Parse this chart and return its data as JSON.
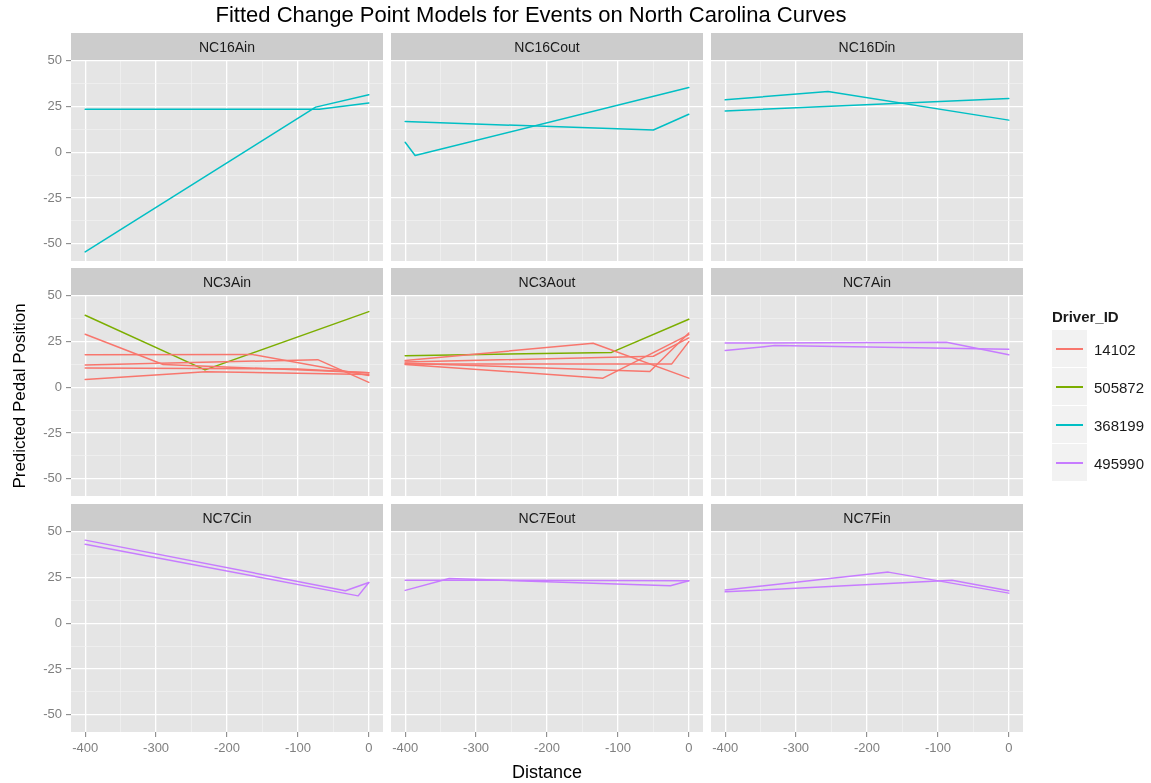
{
  "chart_data": [
    {
      "type": "line",
      "subtitle": "NC16Ain",
      "xlim": [
        -420,
        20
      ],
      "ylim": [
        -59.5,
        50.5
      ],
      "xticks": [
        -400,
        {
          "value": -350,
          "label": null
        },
        -300,
        {
          "value": -250,
          "label": null
        },
        -200,
        {
          "value": -150,
          "label": null
        },
        -100,
        {
          "value": -50,
          "label": null
        },
        0
      ],
      "yticks": [
        -50,
        {
          "value": -37.5,
          "label": null
        },
        -25,
        {
          "value": -12.5,
          "label": null
        },
        0,
        {
          "value": 12.5,
          "label": null
        },
        25,
        {
          "value": 37.5,
          "label": null
        },
        50
      ],
      "grid": true,
      "tick_labels": "y",
      "series": [
        {
          "name": "368199",
          "color": "#00bfc4",
          "x": [
            -400,
            -70,
            0
          ],
          "values": [
            23.5,
            23.5,
            27
          ]
        },
        {
          "color": "#00bfc4",
          "x": [
            -400,
            -75,
            0
          ],
          "values": [
            -54.5,
            24.7,
            31.5
          ]
        }
      ]
    },
    {
      "type": "line",
      "title": "Fitted Change Point Models for Events on North Carolina Curves",
      "subtitle": "NC16Cout",
      "xlim": [
        -420,
        20
      ],
      "ylim": [
        -59.5,
        50.5
      ],
      "xticks": [
        -400,
        {
          "value": -350,
          "label": null
        },
        -300,
        {
          "value": -250,
          "label": null
        },
        -200,
        {
          "value": -150,
          "label": null
        },
        -100,
        {
          "value": -50,
          "label": null
        },
        0
      ],
      "yticks": [
        -50,
        {
          "value": -37.5,
          "label": null
        },
        -25,
        {
          "value": -12.5,
          "label": null
        },
        0,
        {
          "value": 12.5,
          "label": null
        },
        25,
        {
          "value": 37.5,
          "label": null
        },
        50
      ],
      "grid": true,
      "tick_labels": false,
      "series": [
        {
          "color": "#00bfc4",
          "x": [
            -400,
            -386,
            0
          ],
          "values": [
            5.5,
            -1.8,
            35.5
          ]
        },
        {
          "color": "#00bfc4",
          "x": [
            -400,
            -50,
            0
          ],
          "values": [
            16.8,
            12.2,
            20.8
          ]
        }
      ]
    },
    {
      "type": "line",
      "subtitle": "NC16Din",
      "xlim": [
        -420,
        20
      ],
      "ylim": [
        -59.5,
        50.5
      ],
      "xticks": [
        -400,
        {
          "value": -350,
          "label": null
        },
        -300,
        {
          "value": -250,
          "label": null
        },
        -200,
        {
          "value": -150,
          "label": null
        },
        -100,
        {
          "value": -50,
          "label": null
        },
        0
      ],
      "yticks": [
        -50,
        {
          "value": -37.5,
          "label": null
        },
        -25,
        {
          "value": -12.5,
          "label": null
        },
        0,
        {
          "value": 12.5,
          "label": null
        },
        25,
        {
          "value": 37.5,
          "label": null
        },
        50
      ],
      "grid": true,
      "tick_labels": false,
      "series": [
        {
          "color": "#00bfc4",
          "x": [
            -400,
            -255,
            0
          ],
          "values": [
            28.7,
            33.3,
            17.6
          ]
        },
        {
          "color": "#00bfc4",
          "x": [
            -400,
            0
          ],
          "values": [
            22.6,
            29.4
          ]
        }
      ]
    },
    {
      "type": "line",
      "subtitle": "NC3Ain",
      "ylabel": "Predicted Pedal Position",
      "xlim": [
        -420,
        20
      ],
      "ylim": [
        -59.5,
        50.5
      ],
      "xticks": [
        -400,
        {
          "value": -350,
          "label": null
        },
        -300,
        {
          "value": -250,
          "label": null
        },
        -200,
        {
          "value": -150,
          "label": null
        },
        -100,
        {
          "value": -50,
          "label": null
        },
        0
      ],
      "yticks": [
        -50,
        {
          "value": -37.5,
          "label": null
        },
        -25,
        {
          "value": -12.5,
          "label": null
        },
        0,
        {
          "value": 12.5,
          "label": null
        },
        25,
        {
          "value": 37.5,
          "label": null
        },
        50
      ],
      "grid": true,
      "tick_labels": "y",
      "series": [
        {
          "name": "14102",
          "color": "#f8766d",
          "x": [
            -400,
            -290,
            0
          ],
          "values": [
            29,
            12.5,
            8
          ]
        },
        {
          "color": "#f8766d",
          "x": [
            -400,
            -165,
            0
          ],
          "values": [
            17.8,
            18,
            6.5
          ]
        },
        {
          "color": "#f8766d",
          "x": [
            -400,
            -72,
            0
          ],
          "values": [
            12.2,
            15.1,
            2.7
          ]
        },
        {
          "color": "#f8766d",
          "x": [
            -400,
            -100,
            0
          ],
          "values": [
            10.6,
            10,
            7.9
          ]
        },
        {
          "color": "#f8766d",
          "x": [
            -400,
            -230,
            0
          ],
          "values": [
            4.3,
            8.5,
            7
          ]
        },
        {
          "name": "505872",
          "color": "#7cae00",
          "x": [
            -400,
            -231,
            0
          ],
          "values": [
            39.4,
            9.5,
            41.4
          ]
        }
      ]
    },
    {
      "type": "line",
      "subtitle": "NC3Aout",
      "xlim": [
        -420,
        20
      ],
      "ylim": [
        -59.5,
        50.5
      ],
      "xticks": [
        -400,
        {
          "value": -350,
          "label": null
        },
        -300,
        {
          "value": -250,
          "label": null
        },
        -200,
        {
          "value": -150,
          "label": null
        },
        -100,
        {
          "value": -50,
          "label": null
        },
        0
      ],
      "yticks": [
        -50,
        {
          "value": -37.5,
          "label": null
        },
        -25,
        {
          "value": -12.5,
          "label": null
        },
        0,
        {
          "value": 12.5,
          "label": null
        },
        25,
        {
          "value": 37.5,
          "label": null
        },
        50
      ],
      "grid": true,
      "tick_labels": false,
      "series": [
        {
          "color": "#f8766d",
          "x": [
            -400,
            -135,
            0
          ],
          "values": [
            14.6,
            24.1,
            5
          ]
        },
        {
          "color": "#f8766d",
          "x": [
            -400,
            -121,
            0
          ],
          "values": [
            12.5,
            5,
            28.8
          ]
        },
        {
          "color": "#f8766d",
          "x": [
            -400,
            -55,
            0
          ],
          "values": [
            13.2,
            8.6,
            29.7
          ]
        },
        {
          "color": "#f8766d",
          "x": [
            -400,
            -24,
            0
          ],
          "values": [
            12.8,
            12.8,
            25
          ]
        },
        {
          "color": "#f8766d",
          "x": [
            -400,
            -50,
            0
          ],
          "values": [
            13.8,
            17,
            27
          ]
        },
        {
          "color": "#7cae00",
          "x": [
            -400,
            -109,
            0
          ],
          "values": [
            17.3,
            19.1,
            37.2
          ]
        }
      ]
    },
    {
      "type": "line",
      "subtitle": "NC7Ain",
      "legend": "right",
      "legend_title": "Driver_ID",
      "xlim": [
        -420,
        20
      ],
      "ylim": [
        -59.5,
        50.5
      ],
      "xticks": [
        -400,
        {
          "value": -350,
          "label": null
        },
        -300,
        {
          "value": -250,
          "label": null
        },
        -200,
        {
          "value": -150,
          "label": null
        },
        -100,
        {
          "value": -50,
          "label": null
        },
        0
      ],
      "yticks": [
        -50,
        {
          "value": -37.5,
          "label": null
        },
        -25,
        {
          "value": -12.5,
          "label": null
        },
        0,
        {
          "value": 12.5,
          "label": null
        },
        25,
        {
          "value": 37.5,
          "label": null
        },
        50
      ],
      "grid": true,
      "tick_labels": false,
      "series": [
        {
          "name": "495990",
          "color": "#c77cff",
          "x": [
            -400,
            -88,
            0
          ],
          "values": [
            24.2,
            24.7,
            17.8
          ]
        },
        {
          "color": "#c77cff",
          "x": [
            -400,
            -330,
            0
          ],
          "values": [
            20.1,
            22.8,
            20.8
          ]
        }
      ]
    },
    {
      "type": "line",
      "subtitle": "NC7Cin",
      "xlim": [
        -420,
        20
      ],
      "ylim": [
        -59.5,
        50.5
      ],
      "xticks": [
        -400,
        {
          "value": -350,
          "label": null
        },
        -300,
        {
          "value": -250,
          "label": null
        },
        -200,
        {
          "value": -150,
          "label": null
        },
        -100,
        {
          "value": -50,
          "label": null
        },
        0
      ],
      "yticks": [
        -50,
        {
          "value": -37.5,
          "label": null
        },
        -25,
        {
          "value": -12.5,
          "label": null
        },
        0,
        {
          "value": 12.5,
          "label": null
        },
        25,
        {
          "value": 37.5,
          "label": null
        },
        50
      ],
      "grid": true,
      "series": [
        {
          "color": "#c77cff",
          "x": [
            -400,
            -33,
            0
          ],
          "values": [
            45.5,
            17.8,
            22.3
          ]
        },
        {
          "color": "#c77cff",
          "x": [
            -400,
            -15,
            0
          ],
          "values": [
            43.2,
            15,
            22.3
          ]
        }
      ]
    },
    {
      "type": "line",
      "subtitle": "NC7Eout",
      "xlabel": "Distance",
      "xlim": [
        -420,
        20
      ],
      "ylim": [
        -59.5,
        50.5
      ],
      "xticks": [
        -400,
        {
          "value": -350,
          "label": null
        },
        -300,
        {
          "value": -250,
          "label": null
        },
        -200,
        {
          "value": -150,
          "label": null
        },
        -100,
        {
          "value": -50,
          "label": null
        },
        0
      ],
      "yticks": [
        -50,
        {
          "value": -37.5,
          "label": null
        },
        -25,
        {
          "value": -12.5,
          "label": null
        },
        0,
        {
          "value": 12.5,
          "label": null
        },
        25,
        {
          "value": 37.5,
          "label": null
        },
        50
      ],
      "grid": true,
      "tick_labels": "x",
      "series": [
        {
          "color": "#c77cff",
          "x": [
            -400,
            0
          ],
          "values": [
            23.6,
            23.3
          ]
        },
        {
          "color": "#c77cff",
          "x": [
            -400,
            -338,
            -26,
            0
          ],
          "values": [
            18,
            24.5,
            20.5,
            23.3
          ]
        }
      ]
    },
    {
      "type": "line",
      "subtitle": "NC7Fin",
      "xlim": [
        -420,
        20
      ],
      "ylim": [
        -59.5,
        50.5
      ],
      "xticks": [
        -400,
        {
          "value": -350,
          "label": null
        },
        -300,
        {
          "value": -250,
          "label": null
        },
        -200,
        {
          "value": -150,
          "label": null
        },
        -100,
        {
          "value": -50,
          "label": null
        },
        0
      ],
      "yticks": [
        -50,
        {
          "value": -37.5,
          "label": null
        },
        -25,
        {
          "value": -12.5,
          "label": null
        },
        0,
        {
          "value": 12.5,
          "label": null
        },
        25,
        {
          "value": 37.5,
          "label": null
        },
        50
      ],
      "grid": true,
      "tick_labels": "x",
      "series": [
        {
          "color": "#c77cff",
          "x": [
            -400,
            -170,
            0
          ],
          "values": [
            18.2,
            28,
            16.5
          ]
        },
        {
          "color": "#c77cff",
          "x": [
            -400,
            -80,
            0
          ],
          "values": [
            17.2,
            23.5,
            17.8
          ]
        }
      ]
    }
  ]
}
